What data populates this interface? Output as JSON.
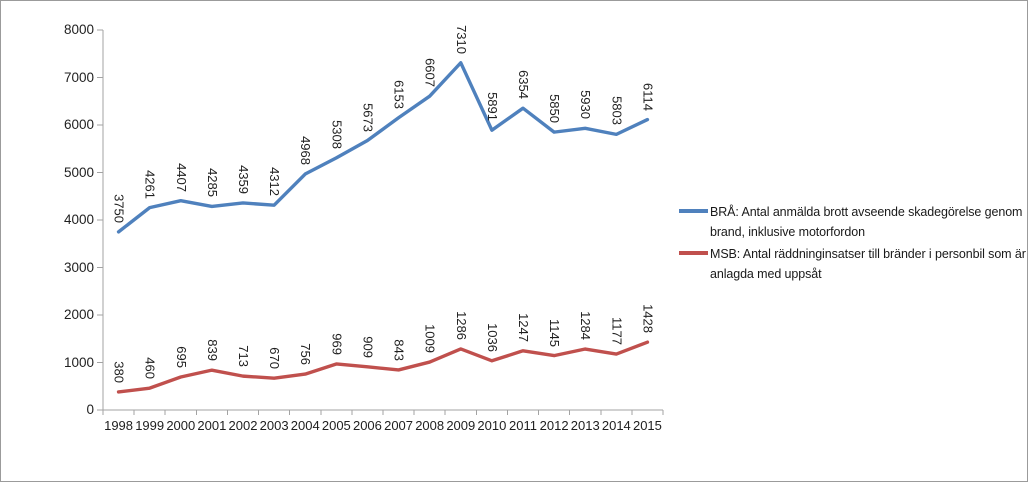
{
  "chart_data": {
    "type": "line",
    "title": "",
    "xlabel": "",
    "ylabel": "",
    "categories": [
      "1998",
      "1999",
      "2000",
      "2001",
      "2002",
      "2003",
      "2004",
      "2005",
      "2006",
      "2007",
      "2008",
      "2009",
      "2010",
      "2011",
      "2012",
      "2013",
      "2014",
      "2015"
    ],
    "series": [
      {
        "name": "BRÅ: Antal anmälda brott avseende skadegörelse genom brand, inklusive motorfordon",
        "color": "#4F81BD",
        "values": [
          3750,
          4261,
          4407,
          4285,
          4359,
          4312,
          4968,
          5308,
          5673,
          6153,
          6607,
          7310,
          5891,
          6354,
          5850,
          5930,
          5803,
          6114
        ]
      },
      {
        "name": "MSB: Antal räddninginsatser till bränder i personbil som är anlagda med uppsåt",
        "color": "#C0504D",
        "values": [
          380,
          460,
          695,
          839,
          713,
          670,
          756,
          969,
          909,
          843,
          1009,
          1286,
          1036,
          1247,
          1145,
          1284,
          1177,
          1428
        ]
      }
    ],
    "ylim": [
      0,
      8000
    ],
    "ytick_step": 1000,
    "grid": false,
    "data_labels": true,
    "data_label_rotation": 90,
    "legend_position": "right"
  },
  "style": {
    "axis_color": "#A3A3A3",
    "label_color": "#1f1f1f",
    "background": "#FFFFFF",
    "frame_border_color": "#9b9b9b"
  }
}
